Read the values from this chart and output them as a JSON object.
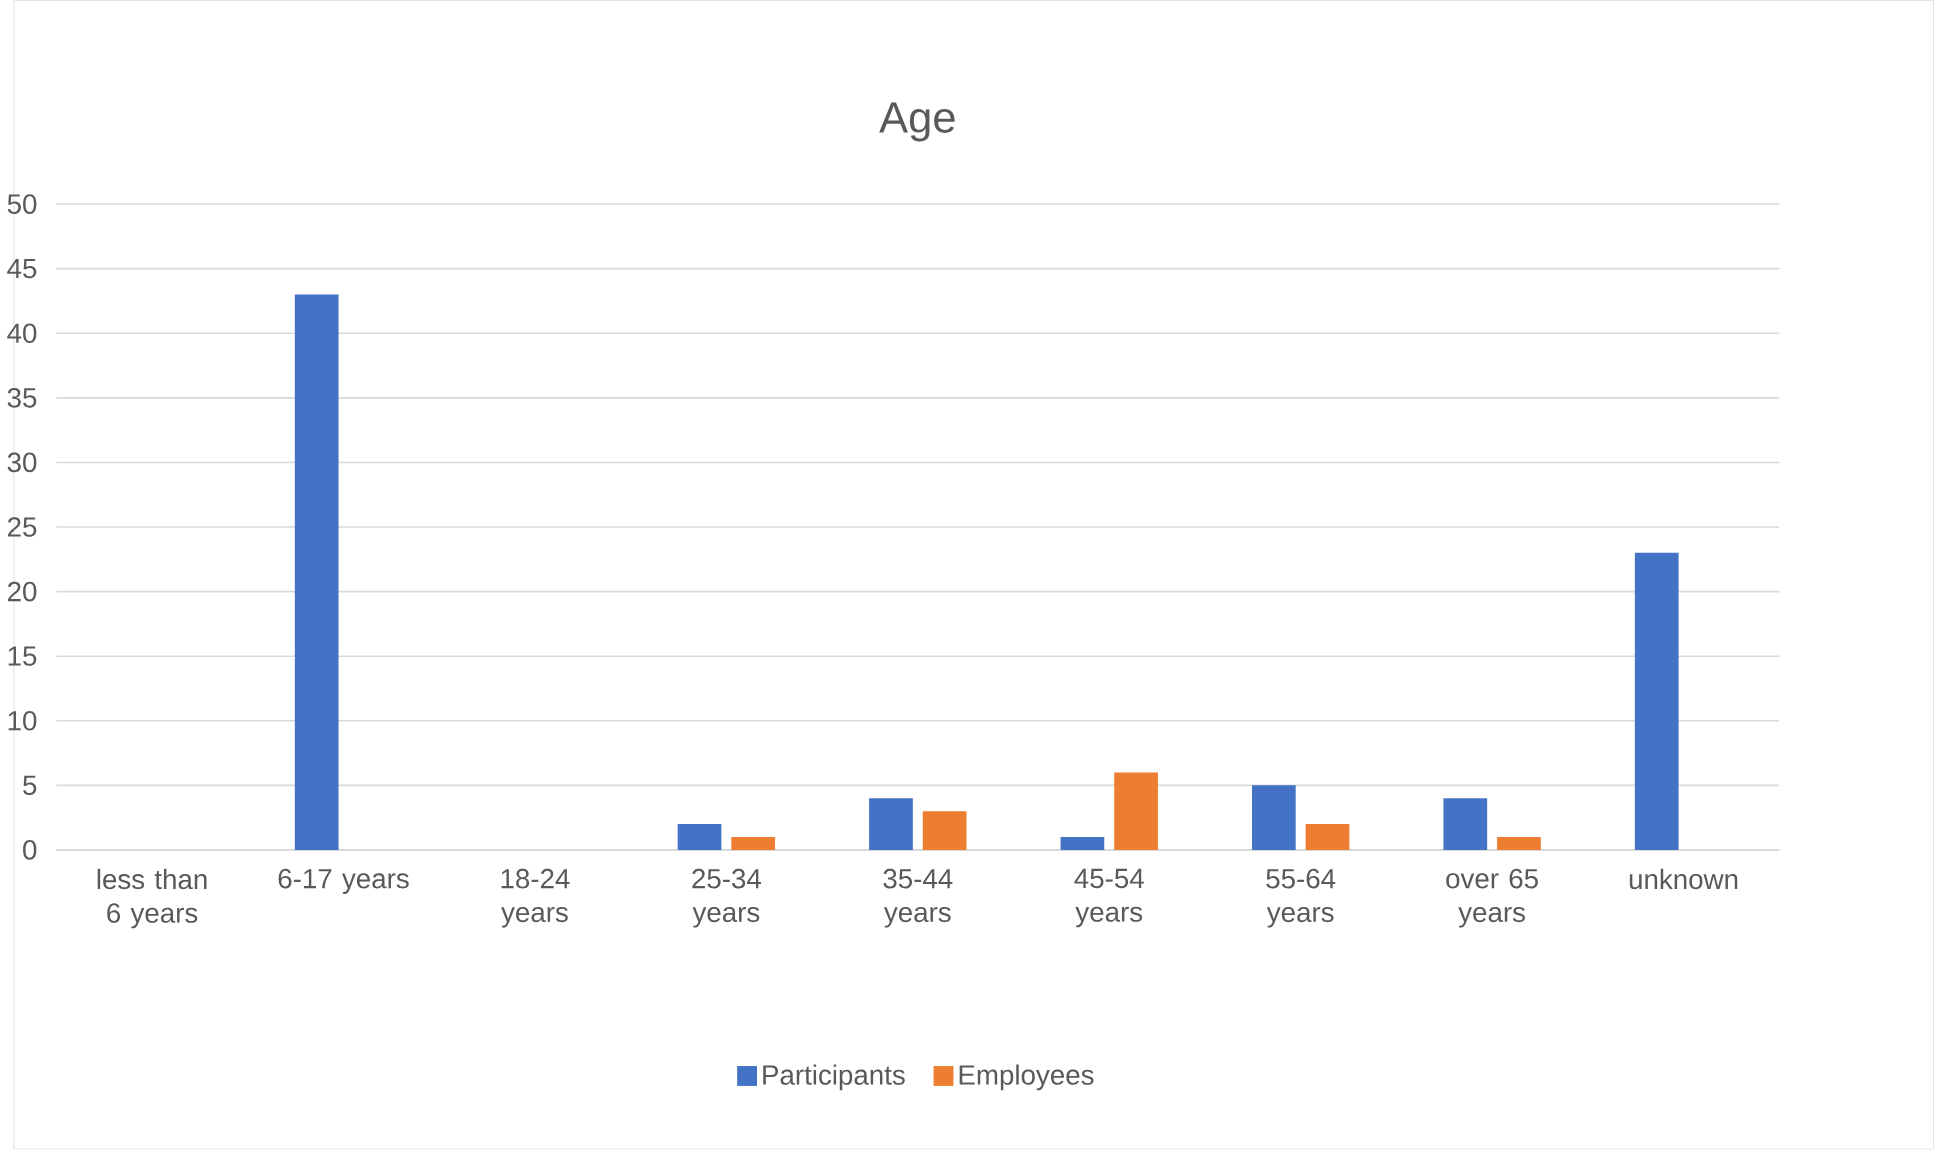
{
  "chart_data": {
    "type": "bar",
    "title": "Age",
    "categories": [
      "less than 6 years",
      "6-17 years",
      "18-24 years",
      "25-34 years",
      "35-44 years",
      "45-54 years",
      "55-64 years",
      "over 65 years",
      "unknown"
    ],
    "series": [
      {
        "name": "Participants",
        "color": "#4472c4",
        "values": [
          0,
          43,
          0,
          2,
          4,
          1,
          5,
          4,
          23
        ]
      },
      {
        "name": "Employees",
        "color": "#ed7d31",
        "values": [
          0,
          0,
          0,
          1,
          3,
          6,
          2,
          1,
          0
        ]
      }
    ],
    "ylim": [
      0,
      50
    ],
    "yticks": [
      0,
      5,
      10,
      15,
      20,
      25,
      30,
      35,
      40,
      45,
      50
    ],
    "grid": "y",
    "legend": "bottom"
  }
}
